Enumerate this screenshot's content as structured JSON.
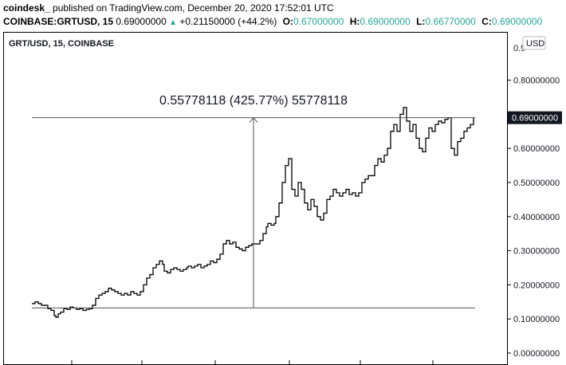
{
  "header": {
    "brand": "coindesk_",
    "published": "published on TradingView.com, December 20, 2020 17:52:01 UTC",
    "symbol": "COINBASE:GRTUSD, 15",
    "price": "0.69000000",
    "change_arrow": "▲",
    "change": "+0.21150000 (+44.2%)",
    "o_label": "O:",
    "o_value": "0.67000000",
    "h_label": "H:",
    "h_value": "0.69000000",
    "l_label": "L:",
    "l_value": "0.66770000",
    "c_label": "C:",
    "c_value": "0.69000000"
  },
  "chart_data": {
    "type": "line",
    "title": "GRT/USD, 15, COINBASE",
    "currency_label": "USD",
    "ylim": [
      0,
      0.92
    ],
    "yticks": [
      "0.00000000",
      "0.10000000",
      "0.20000000",
      "0.30000000",
      "0.40000000",
      "0.50000000",
      "0.60000000",
      "0.70000000",
      "0.80000000"
    ],
    "ytick_values": [
      0,
      0.1,
      0.2,
      0.3,
      0.4,
      0.5,
      0.6,
      0.7,
      0.8
    ],
    "top_tick_partial": "0.9",
    "last_price_label": "0.69000000",
    "grid": false,
    "series": [
      {
        "x": [
          0,
          4,
          8,
          12,
          16,
          20,
          24,
          28,
          30,
          33,
          36,
          40,
          44,
          48,
          52,
          56,
          60,
          64,
          68,
          72,
          76,
          80,
          84,
          88,
          92,
          96,
          100,
          104,
          108,
          112,
          116,
          120,
          124,
          128,
          132,
          136,
          140,
          144,
          148,
          152,
          156,
          160,
          164,
          166,
          170,
          174,
          178,
          182,
          186,
          190,
          194,
          196,
          200,
          204,
          208,
          212,
          216,
          220,
          224,
          228,
          232,
          236,
          240,
          244,
          248,
          252,
          256,
          260,
          264,
          268,
          272,
          276,
          280,
          282,
          286,
          290,
          294,
          296,
          300,
          304,
          306,
          310,
          314,
          318,
          322,
          326,
          330,
          334,
          338,
          342,
          346,
          350,
          354,
          358,
          362,
          366,
          370,
          374,
          378,
          382,
          386,
          390,
          394,
          398,
          402,
          406,
          410,
          414,
          418,
          422,
          426,
          430,
          434,
          438,
          442,
          446,
          450,
          454,
          458,
          462,
          466,
          470,
          474,
          478,
          482,
          486,
          490,
          494,
          498,
          502,
          506,
          510,
          514,
          518,
          522,
          526,
          530,
          534,
          538,
          542,
          546,
          550,
          554
        ],
        "y": [
          0.145,
          0.15,
          0.145,
          0.14,
          0.14,
          0.13,
          0.125,
          0.11,
          0.105,
          0.115,
          0.12,
          0.13,
          0.128,
          0.135,
          0.132,
          0.128,
          0.13,
          0.125,
          0.128,
          0.13,
          0.14,
          0.16,
          0.17,
          0.175,
          0.18,
          0.19,
          0.185,
          0.18,
          0.175,
          0.17,
          0.175,
          0.17,
          0.18,
          0.175,
          0.17,
          0.18,
          0.2,
          0.22,
          0.23,
          0.25,
          0.26,
          0.27,
          0.26,
          0.24,
          0.235,
          0.245,
          0.25,
          0.245,
          0.24,
          0.245,
          0.25,
          0.255,
          0.25,
          0.255,
          0.26,
          0.25,
          0.255,
          0.26,
          0.27,
          0.265,
          0.275,
          0.29,
          0.32,
          0.33,
          0.32,
          0.325,
          0.31,
          0.305,
          0.3,
          0.31,
          0.315,
          0.32,
          0.32,
          0.32,
          0.33,
          0.35,
          0.37,
          0.38,
          0.375,
          0.38,
          0.4,
          0.44,
          0.5,
          0.55,
          0.57,
          0.48,
          0.46,
          0.5,
          0.48,
          0.44,
          0.42,
          0.45,
          0.43,
          0.4,
          0.39,
          0.41,
          0.45,
          0.46,
          0.48,
          0.47,
          0.46,
          0.47,
          0.48,
          0.465,
          0.47,
          0.46,
          0.47,
          0.5,
          0.51,
          0.52,
          0.52,
          0.55,
          0.57,
          0.56,
          0.58,
          0.6,
          0.65,
          0.67,
          0.65,
          0.7,
          0.72,
          0.68,
          0.65,
          0.67,
          0.63,
          0.6,
          0.59,
          0.63,
          0.66,
          0.65,
          0.67,
          0.68,
          0.675,
          0.685,
          0.69,
          0.6,
          0.58,
          0.62,
          0.63,
          0.65,
          0.66,
          0.67,
          0.69
        ]
      }
    ],
    "measure": {
      "label": "0.55778118 (425.77%) 55778118",
      "low": 0.13221882,
      "high": 0.69
    }
  }
}
